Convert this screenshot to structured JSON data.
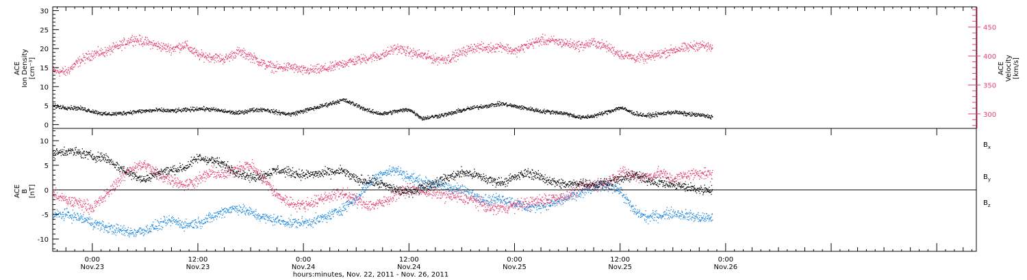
{
  "colors": {
    "black": "#000000",
    "pink": "#e63e6c",
    "blue": "#1a87df",
    "axis": "#000000"
  },
  "xaxis": {
    "title": "hours:minutes, Nov. 22, 2011 - Nov. 26, 2011",
    "range_hours": [
      -4.5,
      100.5
    ],
    "ticks": [
      {
        "t": 0,
        "time": "0:00",
        "date": "Nov.23"
      },
      {
        "t": 12,
        "time": "12:00",
        "date": "Nov.23"
      },
      {
        "t": 24,
        "time": "0:00",
        "date": "Nov.24"
      },
      {
        "t": 36,
        "time": "12:00",
        "date": "Nov.24"
      },
      {
        "t": 48,
        "time": "0:00",
        "date": "Nov.25"
      },
      {
        "t": 60,
        "time": "12:00",
        "date": "Nov.25"
      },
      {
        "t": 72,
        "time": "0:00",
        "date": "Nov.26"
      }
    ]
  },
  "chart_data": [
    {
      "type": "scatter",
      "name": "plasma",
      "ylabel_left": [
        "ACE",
        "Ion Density",
        "[cm⁻³]"
      ],
      "ylabel_right": [
        "ACE",
        "Velocity",
        "[km/s]"
      ],
      "ylim_left": [
        -1,
        31
      ],
      "ylim_right": [
        275,
        485
      ],
      "yticks_left": [
        0,
        5,
        10,
        15,
        20,
        25,
        30
      ],
      "yticks_right": [
        300,
        350,
        400,
        450
      ],
      "series": [
        {
          "axis": "left",
          "color": "#000000",
          "x": [
            -4.5,
            -3,
            -1.5,
            0,
            1.5,
            3,
            4.5,
            6,
            7.5,
            9,
            10.5,
            12,
            13.5,
            15,
            16.5,
            18,
            19.5,
            21,
            22.5,
            24,
            25.5,
            27,
            28.5,
            30,
            31.5,
            33,
            34.5,
            36,
            37.5,
            39,
            40.5,
            42,
            43.5,
            45,
            46.5,
            48,
            49.5,
            51,
            52.5,
            54,
            55.5,
            57,
            58.5,
            60,
            61.5,
            63,
            64.5,
            66,
            67.5,
            69,
            70.5
          ],
          "y": [
            5,
            4.6,
            4.4,
            3.6,
            2.8,
            3,
            3.4,
            3.7,
            3.9,
            3.7,
            3.9,
            4.3,
            4.1,
            3.6,
            3.1,
            3.9,
            4.1,
            3.3,
            2.8,
            3.7,
            4.6,
            5.6,
            6.6,
            5.2,
            3.6,
            2.9,
            3.6,
            4.1,
            1.7,
            2.3,
            2.9,
            3.9,
            4.6,
            5.1,
            5.6,
            4.9,
            4.3,
            3.6,
            3.4,
            2.9,
            1.9,
            2.4,
            3.4,
            4.6,
            3.1,
            2.4,
            2.9,
            3.4,
            2.9,
            2.6,
            2.1
          ]
        },
        {
          "axis": "right",
          "color": "#e63e6c",
          "x": [
            -4.5,
            -3,
            -1.5,
            0,
            1.5,
            3,
            4.5,
            6,
            7.5,
            9,
            10.5,
            12,
            13.5,
            15,
            16.5,
            18,
            19.5,
            21,
            22.5,
            24,
            25.5,
            27,
            28.5,
            30,
            31.5,
            33,
            34.5,
            36,
            37.5,
            39,
            40.5,
            42,
            43.5,
            45,
            46.5,
            48,
            49.5,
            51,
            52.5,
            54,
            55.5,
            57,
            58.5,
            60,
            61.5,
            63,
            64.5,
            66,
            67.5,
            69,
            70.5
          ],
          "y": [
            375,
            373,
            392,
            404,
            408,
            418,
            430,
            425,
            418,
            413,
            420,
            402,
            399,
            395,
            408,
            400,
            386,
            380,
            382,
            375,
            377,
            380,
            388,
            393,
            398,
            402,
            415,
            407,
            402,
            395,
            396,
            407,
            416,
            414,
            418,
            408,
            420,
            428,
            426,
            422,
            418,
            424,
            416,
            404,
            398,
            397,
            404,
            411,
            415,
            420,
            414
          ]
        }
      ]
    },
    {
      "type": "scatter",
      "name": "magnetic-field",
      "ylabel_left": [
        "ACE",
        "B",
        "[nT]"
      ],
      "ylim": [
        -12.5,
        12.5
      ],
      "yticks": [
        -10,
        -5,
        0,
        5,
        10
      ],
      "legend": [
        "B",
        "B",
        "B"
      ],
      "legend_sub": [
        "x",
        "y",
        "z"
      ],
      "series": [
        {
          "color": "#000000",
          "x": [
            -4.5,
            -3,
            -1.5,
            0,
            1.5,
            3,
            4.5,
            6,
            7.5,
            9,
            10.5,
            12,
            13.5,
            15,
            16.5,
            18,
            19.5,
            21,
            22.5,
            24,
            25.5,
            27,
            28.5,
            30,
            31.5,
            33,
            34.5,
            36,
            37.5,
            39,
            40.5,
            42,
            43.5,
            45,
            46.5,
            48,
            49.5,
            51,
            52.5,
            54,
            55.5,
            57,
            58.5,
            60,
            61.5,
            63,
            64.5,
            66,
            67.5,
            69,
            70.5
          ],
          "y": [
            7.4,
            8,
            7.6,
            6.9,
            6.6,
            4.6,
            3.2,
            2.1,
            3.6,
            4.1,
            4.6,
            6.6,
            6.1,
            5.1,
            3.6,
            2.6,
            3.1,
            4.1,
            3.6,
            3.1,
            3.3,
            3.6,
            3.9,
            2.1,
            1.9,
            1.1,
            0.1,
            -0.4,
            0.6,
            1.6,
            2.6,
            3.6,
            3.1,
            2.1,
            1.6,
            2.6,
            3.6,
            2.6,
            1.6,
            1.1,
            1.6,
            1.1,
            1.6,
            2.1,
            3.1,
            2.1,
            1.6,
            1.1,
            0.6,
            0.1,
            0.1
          ]
        },
        {
          "color": "#1a87df",
          "x": [
            -4.5,
            -3,
            -1.5,
            0,
            1.5,
            3,
            4.5,
            6,
            7.5,
            9,
            10.5,
            12,
            13.5,
            15,
            16.5,
            18,
            19.5,
            21,
            22.5,
            24,
            25.5,
            27,
            28.5,
            30,
            31.5,
            33,
            34.5,
            36,
            37.5,
            39,
            40.5,
            42,
            43.5,
            45,
            46.5,
            48,
            49.5,
            51,
            52.5,
            54,
            55.5,
            57,
            58.5,
            60,
            61.5,
            63,
            64.5,
            66,
            67.5,
            69,
            70.5
          ],
          "y": [
            -5.1,
            -4.9,
            -5.6,
            -6.6,
            -7.6,
            -8.1,
            -8.6,
            -8.1,
            -7.1,
            -6.1,
            -7.1,
            -6.6,
            -5.6,
            -4.1,
            -3.6,
            -4.6,
            -5.6,
            -6.1,
            -6.6,
            -6.6,
            -6.1,
            -5.1,
            -3.6,
            -1.6,
            1.6,
            3.6,
            4.1,
            2.6,
            1.6,
            1.1,
            0.6,
            0.1,
            -1.1,
            -2.1,
            -1.6,
            -2.6,
            -3.6,
            -3.1,
            -2.6,
            -1.6,
            -0.6,
            0.6,
            1.1,
            -0.1,
            -4.1,
            -5.6,
            -5.1,
            -4.6,
            -5.1,
            -5.6,
            -5.6
          ]
        },
        {
          "color": "#e63e6c",
          "x": [
            -4.5,
            -3,
            -1.5,
            0,
            1.5,
            3,
            4.5,
            6,
            7.5,
            9,
            10.5,
            12,
            13.5,
            15,
            16.5,
            18,
            19.5,
            21,
            22.5,
            24,
            25.5,
            27,
            28.5,
            30,
            31.5,
            33,
            34.5,
            36,
            37.5,
            39,
            40.5,
            42,
            43.5,
            45,
            46.5,
            48,
            49.5,
            51,
            52.5,
            54,
            55.5,
            57,
            58.5,
            60,
            61.5,
            63,
            64.5,
            66,
            67.5,
            69,
            70.5
          ],
          "y": [
            -0.6,
            -2.1,
            -2.6,
            -3.6,
            -1.1,
            2.1,
            4.6,
            5.1,
            3.1,
            2.1,
            1.1,
            2.1,
            3.6,
            3.1,
            4.6,
            5.1,
            2.1,
            -1.1,
            -2.6,
            -3.1,
            -2.1,
            -1.1,
            -0.6,
            -2.1,
            -3.1,
            -2.6,
            -0.6,
            0.1,
            -0.1,
            -0.6,
            -1.1,
            -1.6,
            -2.1,
            -3.6,
            -3.6,
            -3.1,
            -2.6,
            -2.1,
            -1.6,
            -1.1,
            0.6,
            1.1,
            1.6,
            3.6,
            3.1,
            2.6,
            3.6,
            2.1,
            3.1,
            3.6,
            3.1
          ]
        }
      ]
    }
  ]
}
